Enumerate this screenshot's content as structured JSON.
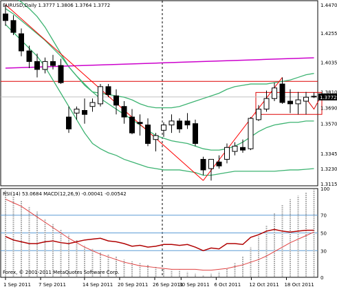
{
  "header": {
    "main_symbol_text": "EURUSD,Daily  1.3777 1.3806 1.3764 1.3772",
    "indicator_text": "RSI(14) 53.0684  MACD(12,26,9) -0.00041 -0.00542",
    "copyright": "Forex, © 2001-2011 MetaQuotes Software Corp."
  },
  "price_axis": {
    "labels": [
      "1.4470",
      "1.4255",
      "1.4035",
      "1.3810",
      "1.3570",
      "1.3345",
      "1.3230",
      "1.3115"
    ],
    "extra_labels": [
      "1.3690"
    ],
    "current_price": "1.3772"
  },
  "indicator_axis": {
    "labels": [
      "100",
      "70",
      "50",
      "30",
      "0"
    ]
  },
  "time_axis": {
    "labels": [
      "1 Sep 2011",
      "7 Sep 2011",
      "14 Sep 2011",
      "20 Sep 2011",
      "26 Sep 2011",
      "30 Sep 2011",
      "6 Oct 2011",
      "12 Oct 2011",
      "18 Oct 2011"
    ]
  },
  "colors": {
    "bg": "#ffffff",
    "bull": "#ffffff",
    "bear": "#000000",
    "bollinger": "#3cb371",
    "ma_long": "#cc00cc",
    "trendline": "#ff0000",
    "support_resistance": "#dd0000",
    "rsi_line": "#b00000",
    "macd_signal": "#e04040",
    "macd_hist": "#b0b0b0",
    "levels": "#5b9bd5"
  },
  "chart_data": [
    {
      "type": "candlestick",
      "title": "EURUSD,Daily",
      "ylim": [
        1.31,
        1.45
      ],
      "candles": [
        {
          "o": 1.44,
          "h": 1.447,
          "l": 1.431,
          "c": 1.435
        },
        {
          "o": 1.435,
          "h": 1.439,
          "l": 1.424,
          "c": 1.426
        },
        {
          "o": 1.425,
          "h": 1.429,
          "l": 1.408,
          "c": 1.412
        },
        {
          "o": 1.412,
          "h": 1.416,
          "l": 1.399,
          "c": 1.404
        },
        {
          "o": 1.404,
          "h": 1.41,
          "l": 1.392,
          "c": 1.398
        },
        {
          "o": 1.398,
          "h": 1.407,
          "l": 1.395,
          "c": 1.404
        },
        {
          "o": 1.404,
          "h": 1.409,
          "l": 1.398,
          "c": 1.401
        },
        {
          "o": 1.401,
          "h": 1.406,
          "l": 1.387,
          "c": 1.388
        },
        {
          "o": 1.362,
          "h": 1.37,
          "l": 1.35,
          "c": 1.353
        },
        {
          "o": 1.365,
          "h": 1.37,
          "l": 1.36,
          "c": 1.368
        },
        {
          "o": 1.367,
          "h": 1.376,
          "l": 1.357,
          "c": 1.364
        },
        {
          "o": 1.37,
          "h": 1.376,
          "l": 1.366,
          "c": 1.373
        },
        {
          "o": 1.372,
          "h": 1.387,
          "l": 1.37,
          "c": 1.385
        },
        {
          "o": 1.385,
          "h": 1.387,
          "l": 1.377,
          "c": 1.379
        },
        {
          "o": 1.378,
          "h": 1.383,
          "l": 1.364,
          "c": 1.371
        },
        {
          "o": 1.37,
          "h": 1.374,
          "l": 1.357,
          "c": 1.362
        },
        {
          "o": 1.362,
          "h": 1.368,
          "l": 1.349,
          "c": 1.35
        },
        {
          "o": 1.358,
          "h": 1.364,
          "l": 1.348,
          "c": 1.357
        },
        {
          "o": 1.356,
          "h": 1.361,
          "l": 1.34,
          "c": 1.342
        },
        {
          "o": 1.345,
          "h": 1.35,
          "l": 1.336,
          "c": 1.348
        },
        {
          "o": 1.352,
          "h": 1.358,
          "l": 1.347,
          "c": 1.356
        },
        {
          "o": 1.356,
          "h": 1.364,
          "l": 1.35,
          "c": 1.359
        },
        {
          "o": 1.359,
          "h": 1.361,
          "l": 1.35,
          "c": 1.353
        },
        {
          "o": 1.359,
          "h": 1.365,
          "l": 1.353,
          "c": 1.356
        },
        {
          "o": 1.357,
          "h": 1.36,
          "l": 1.34,
          "c": 1.342
        },
        {
          "o": 1.33,
          "h": 1.332,
          "l": 1.318,
          "c": 1.322
        },
        {
          "o": 1.323,
          "h": 1.33,
          "l": 1.314,
          "c": 1.33
        },
        {
          "o": 1.328,
          "h": 1.333,
          "l": 1.323,
          "c": 1.325
        },
        {
          "o": 1.33,
          "h": 1.342,
          "l": 1.327,
          "c": 1.339
        },
        {
          "o": 1.336,
          "h": 1.343,
          "l": 1.333,
          "c": 1.34
        },
        {
          "o": 1.339,
          "h": 1.345,
          "l": 1.335,
          "c": 1.337
        },
        {
          "o": 1.338,
          "h": 1.362,
          "l": 1.337,
          "c": 1.361
        },
        {
          "o": 1.36,
          "h": 1.371,
          "l": 1.359,
          "c": 1.368
        },
        {
          "o": 1.368,
          "h": 1.382,
          "l": 1.366,
          "c": 1.376
        },
        {
          "o": 1.376,
          "h": 1.388,
          "l": 1.374,
          "c": 1.384
        },
        {
          "o": 1.387,
          "h": 1.392,
          "l": 1.372,
          "c": 1.373
        },
        {
          "o": 1.374,
          "h": 1.383,
          "l": 1.365,
          "c": 1.372
        },
        {
          "o": 1.372,
          "h": 1.381,
          "l": 1.364,
          "c": 1.375
        },
        {
          "o": 1.374,
          "h": 1.381,
          "l": 1.364,
          "c": 1.377
        },
        {
          "o": 1.3777,
          "h": 1.3806,
          "l": 1.3764,
          "c": 1.3772
        }
      ],
      "bollinger_upper": [
        1.456,
        1.453,
        1.449,
        1.444,
        1.438,
        1.43,
        1.42,
        1.41,
        1.4,
        1.393,
        1.386,
        1.381,
        1.38,
        1.379,
        1.378,
        1.377,
        1.375,
        1.372,
        1.37,
        1.369,
        1.369,
        1.369,
        1.37,
        1.372,
        1.374,
        1.376,
        1.378,
        1.38,
        1.383,
        1.385,
        1.386,
        1.387,
        1.387,
        1.387,
        1.388,
        1.389,
        1.39,
        1.392,
        1.394,
        1.395
      ],
      "bollinger_mid": [
        1.444,
        1.44,
        1.435,
        1.43,
        1.425,
        1.42,
        1.414,
        1.408,
        1.4,
        1.393,
        1.387,
        1.381,
        1.376,
        1.372,
        1.368,
        1.364,
        1.36,
        1.356,
        1.352,
        1.348,
        1.346,
        1.344,
        1.343,
        1.342,
        1.34,
        1.338,
        1.337,
        1.337,
        1.338,
        1.34,
        1.343,
        1.347,
        1.351,
        1.354,
        1.356,
        1.357,
        1.358,
        1.358,
        1.359,
        1.359
      ],
      "bollinger_lower": [
        1.432,
        1.426,
        1.42,
        1.414,
        1.408,
        1.4,
        1.39,
        1.38,
        1.37,
        1.36,
        1.35,
        1.342,
        1.338,
        1.335,
        1.333,
        1.33,
        1.328,
        1.326,
        1.324,
        1.323,
        1.322,
        1.322,
        1.322,
        1.321,
        1.32,
        1.318,
        1.318,
        1.319,
        1.32,
        1.321,
        1.321,
        1.321,
        1.321,
        1.321,
        1.321,
        1.3215,
        1.322,
        1.322,
        1.3225,
        1.323
      ],
      "ma_long": [
        1.399,
        1.3992,
        1.3994,
        1.3996,
        1.3998,
        1.4,
        1.4002,
        1.4004,
        1.4006,
        1.4008,
        1.401,
        1.4012,
        1.4014,
        1.4016,
        1.4018,
        1.402,
        1.4022,
        1.4024,
        1.4026,
        1.4028,
        1.403,
        1.4032,
        1.4034,
        1.4036,
        1.4038,
        1.404,
        1.4042,
        1.4044,
        1.4046,
        1.4048,
        1.405,
        1.4052,
        1.4054,
        1.4056,
        1.4058,
        1.406,
        1.4062,
        1.4064,
        1.4066,
        1.4068
      ],
      "trendlines": [
        {
          "from": [
            0,
            1.447
          ],
          "to": [
            25,
            1.314
          ]
        },
        {
          "from": [
            25,
            1.314
          ],
          "to": [
            35,
            1.392
          ]
        }
      ],
      "resistance_level": 1.389,
      "box": {
        "from_bar": 32,
        "to_bar": 40,
        "top": 1.3806,
        "bottom": 1.364
      }
    },
    {
      "type": "line",
      "title": "RSI(14) / MACD(12,26,9)",
      "ylim": [
        0,
        100
      ],
      "levels": [
        70,
        50,
        30
      ],
      "rsi": [
        46,
        42,
        40,
        38,
        38,
        40,
        41,
        39,
        38,
        40,
        42,
        43,
        44,
        41,
        40,
        38,
        35,
        36,
        34,
        35,
        37,
        37,
        36,
        37,
        34,
        30,
        33,
        32,
        38,
        38,
        37,
        45,
        48,
        52,
        54,
        52,
        51,
        52,
        53,
        53
      ],
      "macd_signal": [
        88,
        84,
        80,
        74,
        68,
        62,
        56,
        50,
        44,
        39,
        34,
        30,
        26,
        23,
        20,
        17,
        15,
        13,
        12,
        11,
        10,
        9,
        9,
        9,
        9,
        8,
        8,
        9,
        10,
        12,
        14,
        17,
        20,
        24,
        29,
        34,
        39,
        43,
        47,
        51
      ],
      "macd_hist": [
        98,
        92,
        86,
        80,
        74,
        66,
        60,
        54,
        48,
        42,
        36,
        32,
        28,
        26,
        24,
        20,
        18,
        16,
        14,
        12,
        10,
        8,
        8,
        6,
        4,
        2,
        4,
        6,
        10,
        16,
        24,
        34,
        46,
        58,
        72,
        82,
        88,
        92,
        96,
        99
      ]
    }
  ]
}
